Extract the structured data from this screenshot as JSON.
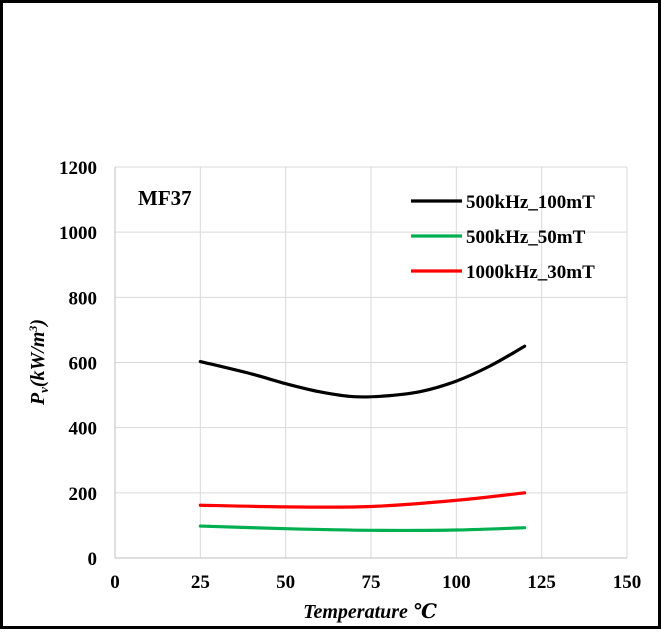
{
  "chart_data": {
    "type": "line",
    "annotation": "MF37",
    "xlabel": "Temperature ℃",
    "ylabel_main": "P",
    "ylabel_sub": "v",
    "ylabel_rest": "(kW/m",
    "ylabel_sup": "3",
    "ylabel_close": ")",
    "xlim": [
      0,
      150
    ],
    "ylim": [
      0,
      1200
    ],
    "xticks": [
      "0",
      "25",
      "50",
      "75",
      "100",
      "125",
      "150"
    ],
    "yticks": [
      "0",
      "200",
      "400",
      "600",
      "800",
      "1000",
      "1200"
    ],
    "grid": true,
    "legend_position": "top-right",
    "series": [
      {
        "name": "500kHz_100mT",
        "color": "#000000",
        "x": [
          25,
          40,
          50,
          60,
          70,
          80,
          90,
          100,
          110,
          120
        ],
        "y": [
          603,
          565,
          535,
          510,
          495,
          498,
          512,
          543,
          590,
          650
        ]
      },
      {
        "name": "500kHz_50mT",
        "color": "#00b050",
        "x": [
          25,
          50,
          75,
          100,
          120
        ],
        "y": [
          98,
          90,
          85,
          86,
          93
        ]
      },
      {
        "name": "1000kHz_30mT",
        "color": "#ff0000",
        "x": [
          25,
          50,
          75,
          100,
          120
        ],
        "y": [
          162,
          157,
          158,
          177,
          200
        ]
      }
    ]
  }
}
